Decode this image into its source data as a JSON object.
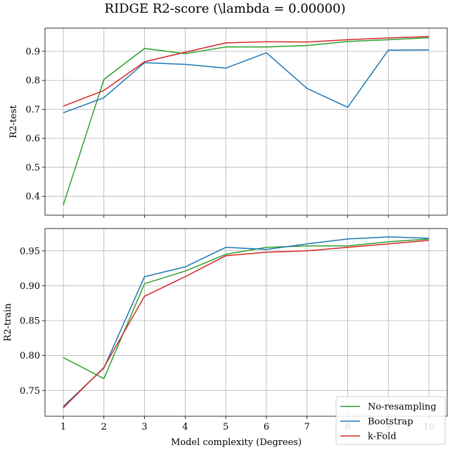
{
  "figure": {
    "title": "RIDGE R2-score (\\lambda = 0.00000)"
  },
  "chart_data": [
    {
      "type": "line",
      "ylabel": "R2-test",
      "xlabel": "",
      "ylim": [
        0.335,
        0.98
      ],
      "xlim": [
        0.55,
        10.45
      ],
      "yticks": [
        0.4,
        0.5,
        0.6,
        0.7,
        0.8,
        0.9
      ],
      "ytick_labels": [
        "0.4",
        "0.5",
        "0.6",
        "0.7",
        "0.8",
        "0.9"
      ],
      "xticks": [
        1,
        2,
        3,
        4,
        5,
        6,
        7,
        8,
        9,
        10
      ],
      "xtick_labels_shown": false,
      "grid": true,
      "x": [
        1,
        2,
        3,
        4,
        5,
        6,
        7,
        8,
        9,
        10
      ],
      "series": [
        {
          "name": "No-resampling",
          "color": "#2ca02c",
          "values": [
            0.37,
            0.803,
            0.91,
            0.892,
            0.915,
            0.915,
            0.92,
            0.934,
            0.94,
            0.947
          ]
        },
        {
          "name": "Bootstrap",
          "color": "#1f77b4",
          "values": [
            0.688,
            0.74,
            0.861,
            0.855,
            0.842,
            0.895,
            0.772,
            0.707,
            0.904,
            0.905
          ]
        },
        {
          "name": "k-Fold",
          "color": "#d62728",
          "values": [
            0.711,
            0.765,
            0.864,
            0.897,
            0.929,
            0.933,
            0.932,
            0.94,
            0.946,
            0.951
          ]
        }
      ]
    },
    {
      "type": "line",
      "ylabel": "R2-train",
      "xlabel": "Model complexity (Degrees)",
      "ylim": [
        0.713,
        0.982
      ],
      "xlim": [
        0.55,
        10.45
      ],
      "yticks": [
        0.75,
        0.8,
        0.85,
        0.9,
        0.95
      ],
      "ytick_labels": [
        "0.75",
        "0.80",
        "0.85",
        "0.90",
        "0.95"
      ],
      "xticks": [
        1,
        2,
        3,
        4,
        5,
        6,
        7,
        8,
        9,
        10
      ],
      "xtick_labels": [
        "1",
        "2",
        "3",
        "4",
        "5",
        "6",
        "7",
        "8",
        "9",
        "10"
      ],
      "grid": true,
      "legend_position": "lower-right",
      "legend_entries": [
        "No-resampling",
        "Bootstrap",
        "k-Fold"
      ],
      "x": [
        1,
        2,
        3,
        4,
        5,
        6,
        7,
        8,
        9,
        10
      ],
      "series": [
        {
          "name": "No-resampling",
          "color": "#2ca02c",
          "values": [
            0.797,
            0.767,
            0.903,
            0.921,
            0.945,
            0.955,
            0.957,
            0.957,
            0.963,
            0.967
          ]
        },
        {
          "name": "Bootstrap",
          "color": "#1f77b4",
          "values": [
            0.727,
            0.782,
            0.913,
            0.927,
            0.955,
            0.952,
            0.96,
            0.967,
            0.97,
            0.968
          ]
        },
        {
          "name": "k-Fold",
          "color": "#d62728",
          "values": [
            0.725,
            0.783,
            0.885,
            0.913,
            0.943,
            0.948,
            0.95,
            0.955,
            0.96,
            0.965
          ]
        }
      ]
    }
  ]
}
